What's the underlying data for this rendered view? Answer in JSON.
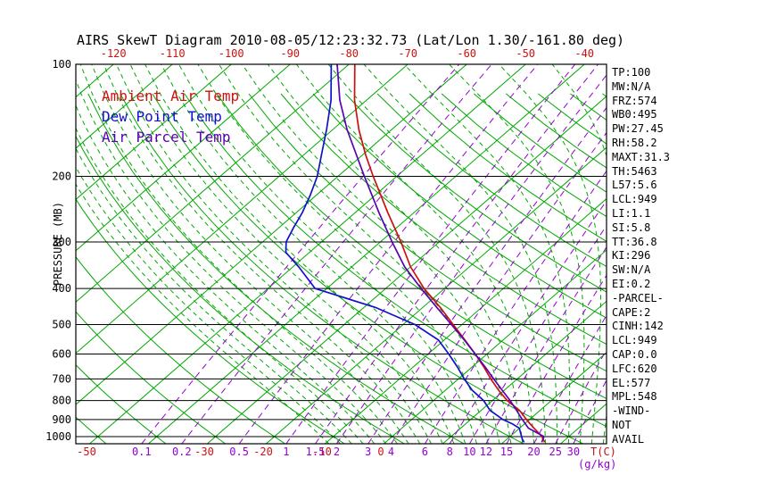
{
  "title": "AIRS SkewT Diagram 2010-08-05/12:23:32.73 (Lat/Lon 1.30/-161.80 deg)",
  "legend": {
    "items": [
      {
        "label": "Ambient Air Temp",
        "color": "#cc1111"
      },
      {
        "label": "Dew Point Temp",
        "color": "#1111cc"
      },
      {
        "label": "Air Parcel Temp",
        "color": "#5a00b0"
      }
    ]
  },
  "stats_panel": {
    "lines": [
      "TP:100",
      "MW:N/A",
      "FRZ:574",
      "WB0:495",
      "PW:27.45",
      "RH:58.2",
      "MAXT:31.3",
      "TH:5463",
      "L57:5.6",
      "LCL:949",
      "LI:1.1",
      "SI:5.8",
      "TT:36.8",
      "KI:296",
      "SW:N/A",
      "EI:0.2",
      "-PARCEL-",
      "CAPE:2",
      "CINH:142",
      "LCL:949",
      "CAP:0.0",
      "LFC:620",
      "EL:577",
      "MPL:548",
      "-WIND-",
      "NOT",
      "AVAIL"
    ]
  },
  "colors": {
    "background_lines": "#00a800",
    "mixing_lines": "#9400d3",
    "axis": "#000000",
    "temp_tick_labels": "#cc1111"
  },
  "chart_data": {
    "type": "line",
    "title": "AIRS SkewT Diagram 2010-08-05/12:23:32.73 (Lat/Lon 1.30/-161.80 deg)",
    "projection": "skew-T log-P",
    "x_axis": {
      "label": "T(C)",
      "top_ticks": [
        -120,
        -110,
        -100,
        -90,
        -80,
        -70,
        -60,
        -50,
        -40
      ],
      "bottom_ticks": [
        -50,
        -30,
        -20,
        -10,
        0
      ]
    },
    "y_axis": {
      "label": "PRESSURE (MB)",
      "scale": "log",
      "ticks": [
        100,
        200,
        300,
        400,
        500,
        600,
        700,
        800,
        900,
        1000
      ],
      "range": [
        100,
        1045
      ]
    },
    "isotherms": {
      "min": -120,
      "max": 30,
      "step": 10
    },
    "dry_adiabats": {
      "min": -50,
      "max": 180,
      "step": 10
    },
    "moist_adiabats": {
      "min": -12,
      "max": 36,
      "step": 2
    },
    "mixing_ratio_lines": {
      "label": "(g/kg)",
      "values": [
        0.1,
        0.2,
        0.5,
        1,
        1.5,
        2,
        3,
        4,
        6,
        8,
        10,
        12,
        15,
        20,
        25,
        30
      ]
    },
    "series": [
      {
        "name": "Ambient Air Temp",
        "color": "#cc1111",
        "points": [
          [
            1035,
            27
          ],
          [
            1013,
            26
          ],
          [
            1000,
            25.5
          ],
          [
            975,
            24
          ],
          [
            950,
            22.5
          ],
          [
            925,
            21
          ],
          [
            900,
            19.5
          ],
          [
            850,
            16.5
          ],
          [
            800,
            12.5
          ],
          [
            750,
            9
          ],
          [
            700,
            5.5
          ],
          [
            650,
            2
          ],
          [
            600,
            -2
          ],
          [
            550,
            -6.5
          ],
          [
            500,
            -11.5
          ],
          [
            450,
            -17
          ],
          [
            400,
            -23.5
          ],
          [
            350,
            -30
          ],
          [
            300,
            -36.5
          ],
          [
            250,
            -44.5
          ],
          [
            200,
            -54
          ],
          [
            175,
            -59.5
          ],
          [
            150,
            -65.5
          ],
          [
            125,
            -72
          ],
          [
            100,
            -79
          ]
        ]
      },
      {
        "name": "Dew Point Temp",
        "color": "#1111cc",
        "points": [
          [
            1035,
            23.5
          ],
          [
            1013,
            22.5
          ],
          [
            1000,
            22
          ],
          [
            975,
            21
          ],
          [
            950,
            20
          ],
          [
            925,
            18
          ],
          [
            900,
            15.5
          ],
          [
            850,
            11.5
          ],
          [
            800,
            8.5
          ],
          [
            750,
            4.5
          ],
          [
            700,
            1
          ],
          [
            650,
            -2.5
          ],
          [
            600,
            -6.5
          ],
          [
            550,
            -11
          ],
          [
            500,
            -18
          ],
          [
            450,
            -28
          ],
          [
            400,
            -42
          ],
          [
            350,
            -49
          ],
          [
            320,
            -54
          ],
          [
            300,
            -56
          ],
          [
            275,
            -57.5
          ],
          [
            250,
            -59
          ],
          [
            225,
            -61
          ],
          [
            200,
            -63.5
          ],
          [
            175,
            -67
          ],
          [
            150,
            -71
          ],
          [
            125,
            -76
          ],
          [
            100,
            -83
          ]
        ]
      },
      {
        "name": "Air Parcel Temp",
        "color": "#5a00b0",
        "points": [
          [
            1035,
            26.5
          ],
          [
            1000,
            25.8
          ],
          [
            949,
            21.5
          ],
          [
            900,
            18.8
          ],
          [
            850,
            16
          ],
          [
            800,
            13
          ],
          [
            750,
            9.6
          ],
          [
            700,
            6
          ],
          [
            650,
            2.2
          ],
          [
            600,
            -2
          ],
          [
            550,
            -6.6
          ],
          [
            500,
            -11.8
          ],
          [
            450,
            -17.6
          ],
          [
            400,
            -24
          ],
          [
            350,
            -31
          ],
          [
            300,
            -38
          ],
          [
            250,
            -46
          ],
          [
            200,
            -55.5
          ],
          [
            150,
            -67.5
          ],
          [
            125,
            -74.5
          ],
          [
            100,
            -82
          ]
        ]
      }
    ]
  }
}
